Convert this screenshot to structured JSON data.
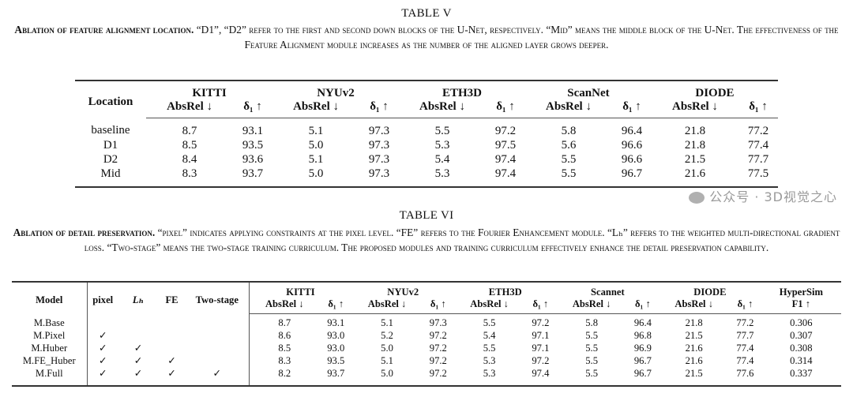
{
  "table5": {
    "title": "TABLE V",
    "caption_lead": "Ablation of feature alignment location.",
    "caption_rest": " “D1”, “D2” refer to the first and second down blocks of the U-Net, respectively. “Mid” means the middle block of the U-Net. The effectiveness of the Feature Alignment module increases as the number of the aligned layer grows deeper.",
    "row_header": "Location",
    "datasets": [
      "KITTI",
      "NYUv2",
      "ETH3D",
      "ScanNet",
      "DIODE"
    ],
    "metrics": [
      "AbsRel ↓",
      "δ₁ ↑"
    ],
    "rows": [
      {
        "label": "baseline",
        "values": [
          "8.7",
          "93.1",
          "5.1",
          "97.3",
          "5.5",
          "97.2",
          "5.8",
          "96.4",
          "21.8",
          "77.2"
        ]
      },
      {
        "label": "D1",
        "values": [
          "8.5",
          "93.5",
          "5.0",
          "97.3",
          "5.3",
          "97.5",
          "5.6",
          "96.6",
          "21.8",
          "77.4"
        ]
      },
      {
        "label": "D2",
        "values": [
          "8.4",
          "93.6",
          "5.1",
          "97.3",
          "5.4",
          "97.4",
          "5.5",
          "96.6",
          "21.5",
          "77.7"
        ]
      },
      {
        "label": "Mid",
        "values": [
          "8.3",
          "93.7",
          "5.0",
          "97.3",
          "5.3",
          "97.4",
          "5.5",
          "96.7",
          "21.6",
          "77.5"
        ]
      }
    ]
  },
  "table6": {
    "title": "TABLE VI",
    "caption_lead": "Ablation of detail preservation.",
    "caption_rest": " “pixel” indicates applying constraints at the pixel level. “FE” refers to the Fourier Enhancement module. “Lₕ” refers to the weighted multi-directional gradient loss. “Two-stage” means the two-stage training curriculum. The proposed modules and training curriculum effectively enhance the detail preservation capability.",
    "row_header": "Model",
    "components": [
      "pixel",
      "Lₕ",
      "FE",
      "Two-stage"
    ],
    "datasets": [
      "KITTI",
      "NYUv2",
      "ETH3D",
      "Scannet",
      "DIODE"
    ],
    "metrics": [
      "AbsRel ↓",
      "δ₁ ↑"
    ],
    "extra_dataset": "HyperSim",
    "extra_metric": "F1 ↑",
    "check": "✓",
    "rows": [
      {
        "label": "M.Base",
        "checks": [
          false,
          false,
          false,
          false
        ],
        "values": [
          "8.7",
          "93.1",
          "5.1",
          "97.3",
          "5.5",
          "97.2",
          "5.8",
          "96.4",
          "21.8",
          "77.2",
          "0.306"
        ]
      },
      {
        "label": "M.Pixel",
        "checks": [
          true,
          false,
          false,
          false
        ],
        "values": [
          "8.6",
          "93.0",
          "5.2",
          "97.2",
          "5.4",
          "97.1",
          "5.5",
          "96.8",
          "21.5",
          "77.7",
          "0.307"
        ]
      },
      {
        "label": "M.Huber",
        "checks": [
          true,
          true,
          false,
          false
        ],
        "values": [
          "8.5",
          "93.0",
          "5.0",
          "97.2",
          "5.5",
          "97.1",
          "5.5",
          "96.9",
          "21.6",
          "77.4",
          "0.308"
        ]
      },
      {
        "label": "M.FE_Huber",
        "checks": [
          true,
          true,
          true,
          false
        ],
        "values": [
          "8.3",
          "93.5",
          "5.1",
          "97.2",
          "5.3",
          "97.2",
          "5.5",
          "96.7",
          "21.6",
          "77.4",
          "0.314"
        ]
      },
      {
        "label": "M.Full",
        "checks": [
          true,
          true,
          true,
          true
        ],
        "values": [
          "8.2",
          "93.7",
          "5.0",
          "97.2",
          "5.3",
          "97.4",
          "5.5",
          "96.7",
          "21.5",
          "77.6",
          "0.337"
        ]
      }
    ]
  },
  "watermark": "公众号 · 3D视觉之心"
}
